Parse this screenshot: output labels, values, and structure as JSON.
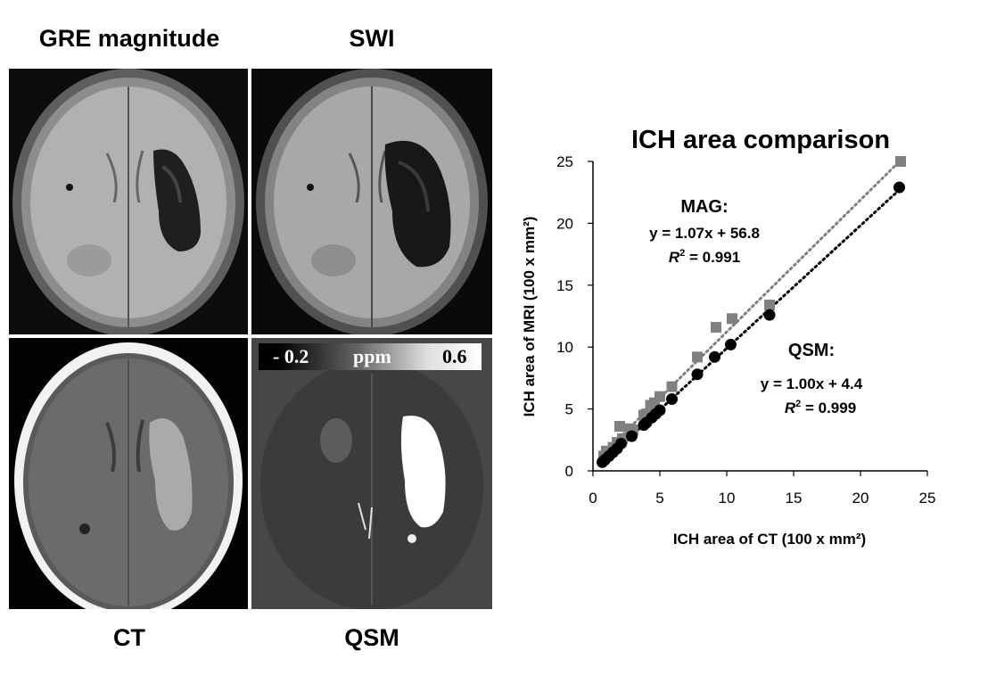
{
  "panels": {
    "gre": "GRE magnitude",
    "swi": "SWI",
    "ct": "CT",
    "qsm": "QSM"
  },
  "colorbar": {
    "min": "- 0.2",
    "unit": "ppm",
    "max": "0.6"
  },
  "colors": {
    "mag": "#808080",
    "qsm": "#000000"
  },
  "chart_data": {
    "type": "scatter",
    "title": "ICH area comparison",
    "xlabel": "ICH area of CT (100 x mm²)",
    "ylabel": "ICH area of MRI (100 x mm²)",
    "xlim": [
      0,
      25
    ],
    "ylim": [
      0,
      25
    ],
    "xticks": [
      "0",
      "5",
      "10",
      "15",
      "20",
      "25"
    ],
    "yticks": [
      "0",
      "5",
      "10",
      "15",
      "20",
      "25"
    ],
    "grid": false,
    "series": [
      {
        "name": "MAG",
        "marker": "square",
        "color": "#808080",
        "fit_label": "MAG:",
        "equation": "y = 1.07x + 56.8",
        "r2_label": "R",
        "r2_value": " = 0.991",
        "x": [
          0.8,
          1.0,
          1.5,
          1.8,
          2.0,
          2.2,
          2.8,
          3.0,
          3.8,
          4.0,
          4.3,
          4.6,
          5.0,
          5.9,
          7.8,
          9.2,
          10.4,
          13.2,
          23.0
        ],
        "y": [
          1.2,
          1.6,
          1.9,
          2.3,
          3.6,
          2.6,
          3.4,
          3.3,
          4.5,
          4.6,
          5.3,
          5.5,
          6.0,
          6.8,
          9.2,
          11.6,
          12.3,
          13.4,
          25.0
        ]
      },
      {
        "name": "QSM",
        "marker": "circle",
        "color": "#000000",
        "fit_label": "QSM:",
        "equation": "y = 1.00x + 4.4",
        "r2_label": "R",
        "r2_value": " = 0.999",
        "x": [
          0.7,
          0.9,
          1.2,
          1.5,
          1.8,
          2.1,
          2.9,
          3.8,
          4.0,
          4.4,
          4.7,
          5.0,
          5.9,
          7.8,
          9.1,
          10.3,
          13.2,
          22.9
        ],
        "y": [
          0.7,
          0.9,
          1.2,
          1.5,
          1.8,
          2.2,
          2.8,
          3.7,
          3.9,
          4.3,
          4.6,
          4.9,
          5.8,
          7.8,
          9.2,
          10.2,
          12.6,
          22.9
        ]
      }
    ]
  }
}
